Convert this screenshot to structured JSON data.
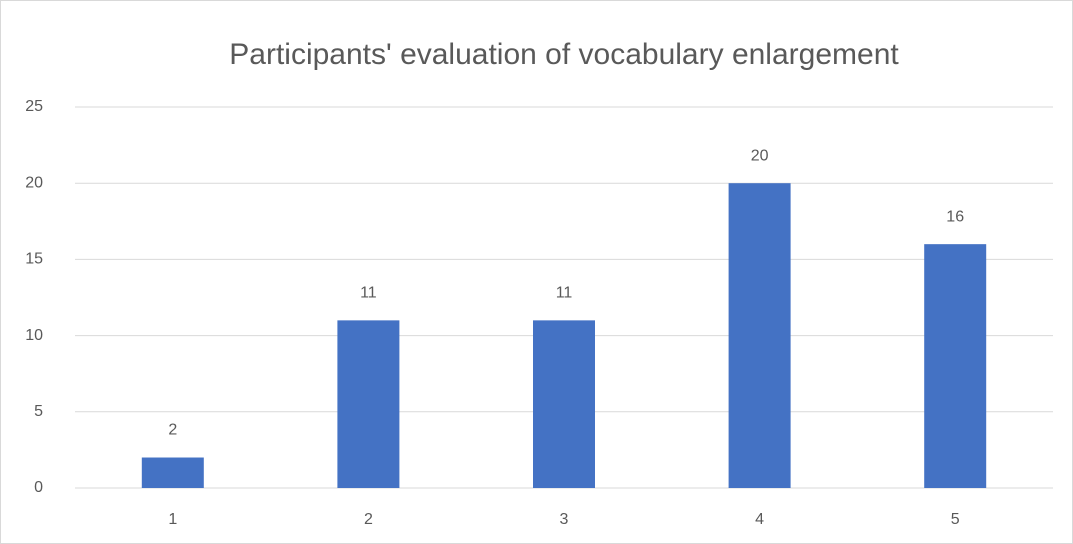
{
  "chart_data": {
    "type": "bar",
    "title": "Participants' evaluation of vocabulary enlargement",
    "categories": [
      "1",
      "2",
      "3",
      "4",
      "5"
    ],
    "values": [
      2,
      11,
      11,
      20,
      16
    ],
    "color": "#4472c4",
    "ylim": [
      0,
      25
    ],
    "yticks": [
      0,
      5,
      10,
      15,
      20,
      25
    ],
    "grid": true,
    "data_labels": true
  }
}
